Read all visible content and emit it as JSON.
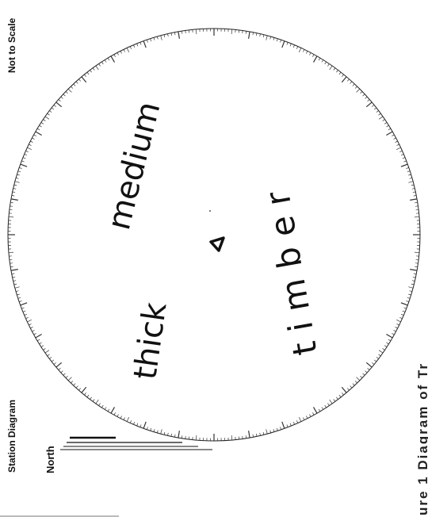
{
  "diagram": {
    "title": "Station Diagram",
    "scale_note": "Not to Scale",
    "north_label": "North",
    "footer_partial": "ure 1  Diagram of Tr",
    "handwritten": [
      "medium",
      "thick",
      "timber"
    ],
    "station_symbol": "triangle"
  },
  "colors": {
    "ink": "#111111",
    "background": "#ffffff"
  }
}
